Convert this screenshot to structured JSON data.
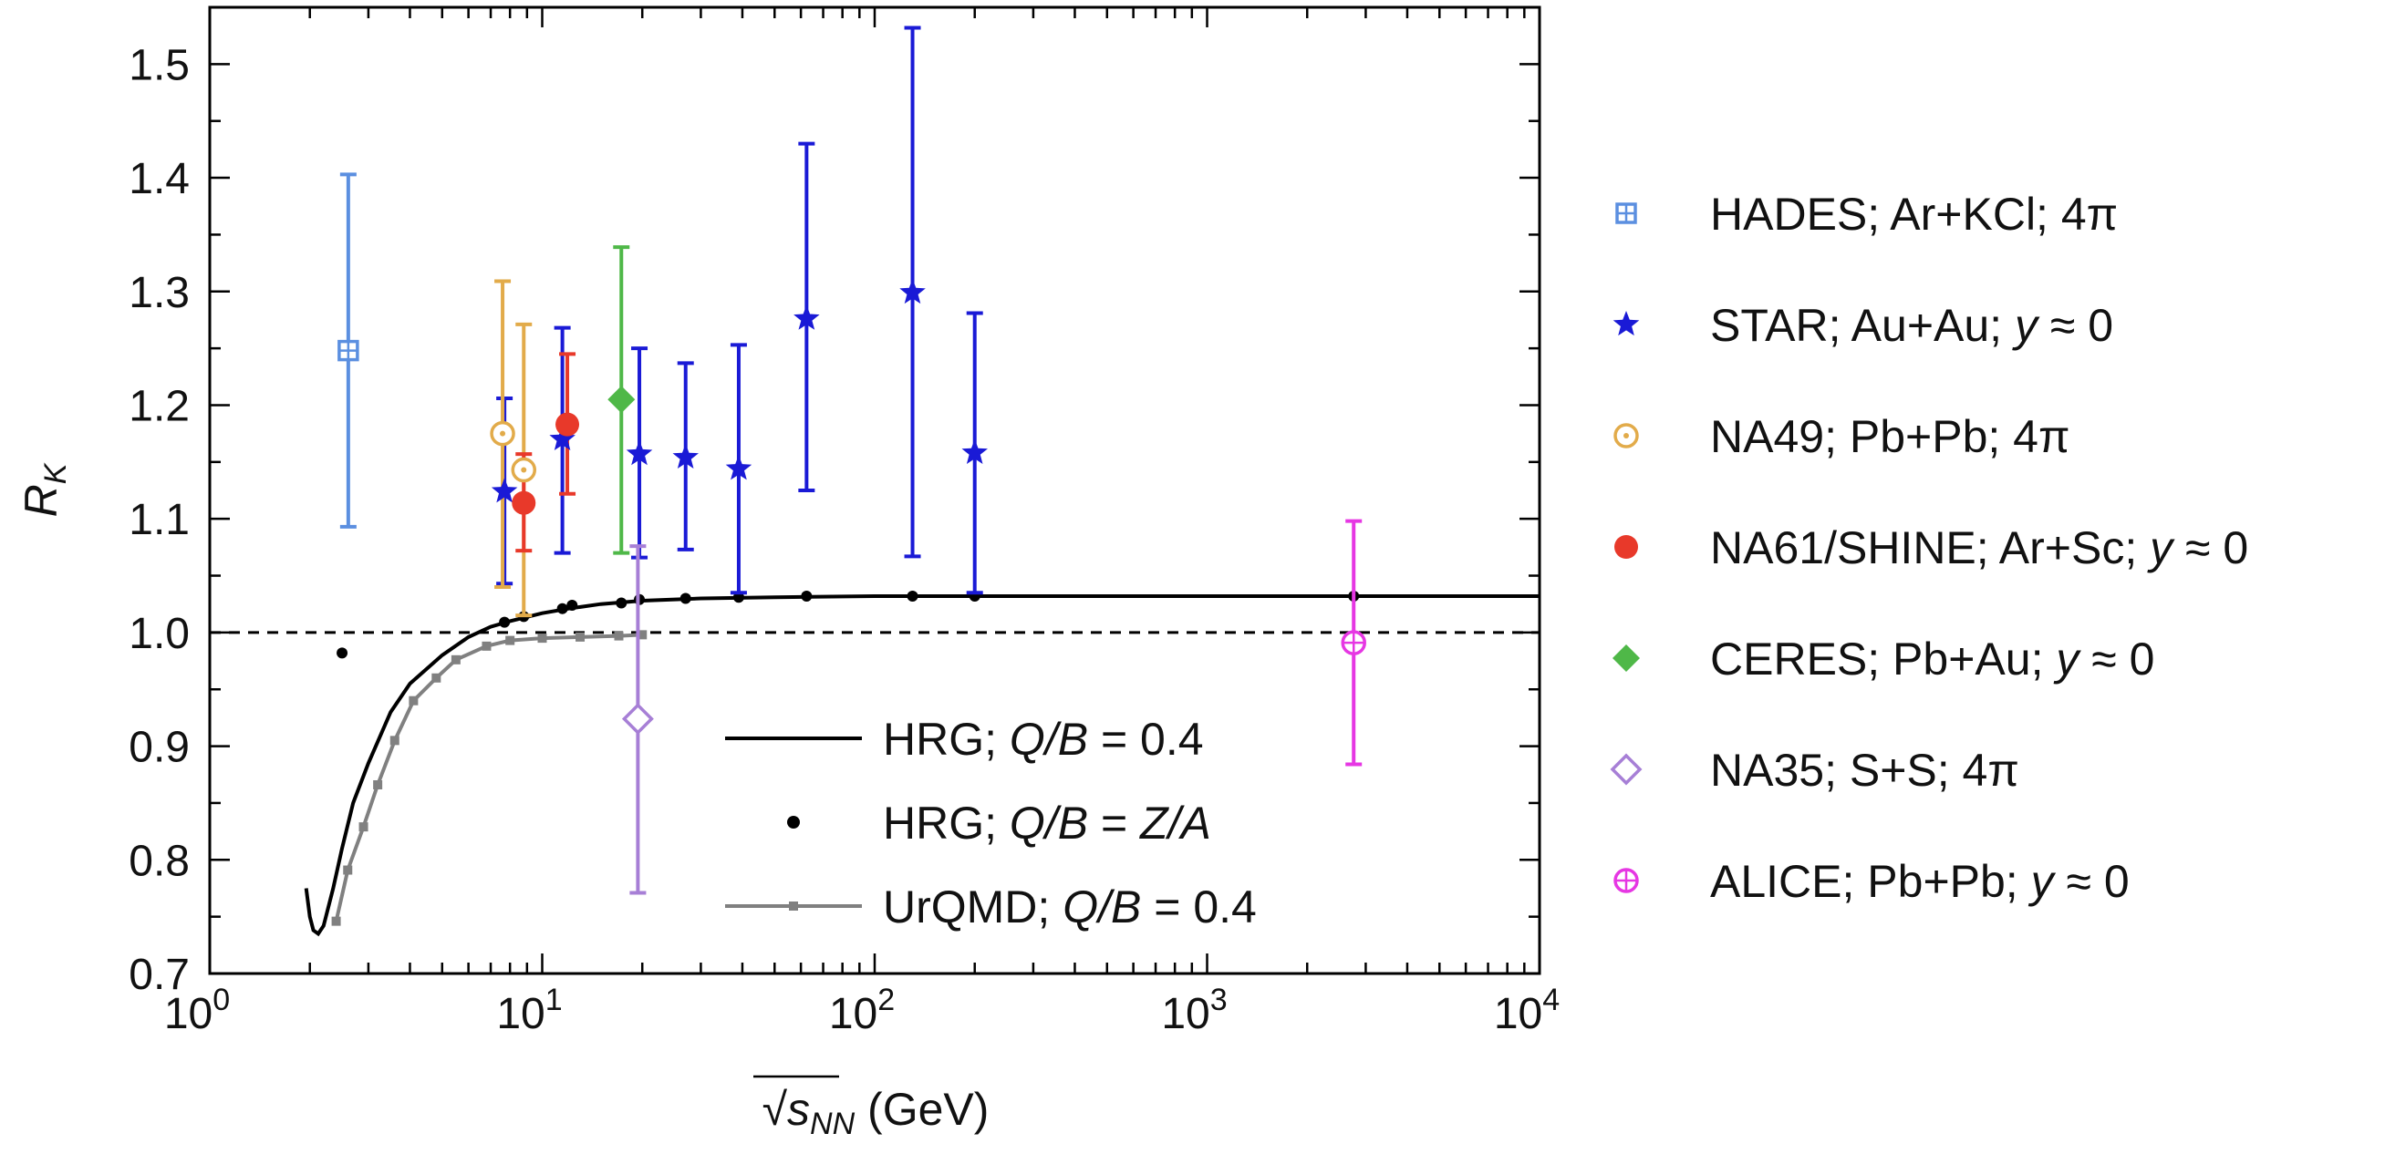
{
  "chart_data": {
    "type": "scatter",
    "xscale": "log",
    "xlim": [
      1,
      10000
    ],
    "ylim": [
      0.7,
      1.55
    ],
    "xlabel": {
      "sqrt": "√",
      "sym": "s",
      "sub": "NN",
      "unit": " (GeV)"
    },
    "ylabel": {
      "sym": "R",
      "sub": "K"
    },
    "x_ticks": [
      {
        "value": 1,
        "base": "10",
        "exp": "0"
      },
      {
        "value": 10,
        "base": "10",
        "exp": "1"
      },
      {
        "value": 100,
        "base": "10",
        "exp": "2"
      },
      {
        "value": 1000,
        "base": "10",
        "exp": "3"
      },
      {
        "value": 10000,
        "base": "10",
        "exp": "4"
      }
    ],
    "y_ticks": [
      {
        "value": 0.7,
        "label": "0.7"
      },
      {
        "value": 0.8,
        "label": "0.8"
      },
      {
        "value": 0.9,
        "label": "0.9"
      },
      {
        "value": 1.0,
        "label": "1.0"
      },
      {
        "value": 1.1,
        "label": "1.1"
      },
      {
        "value": 1.2,
        "label": "1.2"
      },
      {
        "value": 1.3,
        "label": "1.3"
      },
      {
        "value": 1.4,
        "label": "1.4"
      },
      {
        "value": 1.5,
        "label": "1.5"
      }
    ],
    "reference_line": {
      "y": 1.0,
      "style": "dashed"
    },
    "series": [
      {
        "name": "HADES; Ar+KCl; 4π",
        "id": "hades",
        "color": "#5b8fe0",
        "marker": "square-plus",
        "legend": [
          {
            "t": "HADES; Ar+KCl; 4π",
            "i": false
          }
        ],
        "points": [
          {
            "x": 2.61,
            "y": 1.248,
            "lo": 1.093,
            "hi": 1.403
          }
        ]
      },
      {
        "name": "STAR; Au+Au; y ≈ 0",
        "id": "star",
        "color": "#1a1ad6",
        "marker": "star",
        "legend": [
          {
            "t": "STAR; Au+Au; ",
            "i": false
          },
          {
            "t": "y",
            "i": true
          },
          {
            "t": " ≈ 0",
            "i": false
          }
        ],
        "points": [
          {
            "x": 7.7,
            "y": 1.124,
            "lo": 1.043,
            "hi": 1.206
          },
          {
            "x": 11.5,
            "y": 1.17,
            "lo": 1.07,
            "hi": 1.268
          },
          {
            "x": 19.6,
            "y": 1.157,
            "lo": 1.066,
            "hi": 1.25
          },
          {
            "x": 27,
            "y": 1.154,
            "lo": 1.073,
            "hi": 1.237
          },
          {
            "x": 39,
            "y": 1.144,
            "lo": 1.035,
            "hi": 1.253
          },
          {
            "x": 62.4,
            "y": 1.276,
            "lo": 1.125,
            "hi": 1.43
          },
          {
            "x": 130,
            "y": 1.299,
            "lo": 1.067,
            "hi": 1.532
          },
          {
            "x": 200,
            "y": 1.158,
            "lo": 1.035,
            "hi": 1.281
          }
        ]
      },
      {
        "name": "NA49; Pb+Pb; 4π",
        "id": "na49",
        "color": "#e2ab4a",
        "marker": "circle-dot",
        "legend": [
          {
            "t": "NA49; Pb+Pb; 4π",
            "i": false
          }
        ],
        "points": [
          {
            "x": 7.6,
            "y": 1.175,
            "lo": 1.04,
            "hi": 1.309
          },
          {
            "x": 8.8,
            "y": 1.143,
            "lo": 1.015,
            "hi": 1.271
          }
        ]
      },
      {
        "name": "NA61/SHINE; Ar+Sc; y ≈ 0",
        "id": "na61",
        "color": "#e8392a",
        "marker": "circle",
        "legend": [
          {
            "t": "NA61/SHINE; Ar+Sc; ",
            "i": false
          },
          {
            "t": "y",
            "i": true
          },
          {
            "t": " ≈ 0",
            "i": false
          }
        ],
        "points": [
          {
            "x": 8.8,
            "y": 1.114,
            "lo": 1.072,
            "hi": 1.157
          },
          {
            "x": 11.9,
            "y": 1.183,
            "lo": 1.122,
            "hi": 1.245
          }
        ]
      },
      {
        "name": "CERES; Pb+Au; y ≈ 0",
        "id": "ceres",
        "color": "#4fb848",
        "marker": "diamond",
        "legend": [
          {
            "t": "CERES; Pb+Au; ",
            "i": false
          },
          {
            "t": "y",
            "i": true
          },
          {
            "t": " ≈ 0",
            "i": false
          }
        ],
        "points": [
          {
            "x": 17.3,
            "y": 1.205,
            "lo": 1.07,
            "hi": 1.339
          }
        ]
      },
      {
        "name": "NA35; S+S; 4π",
        "id": "na35",
        "color": "#a77fd6",
        "marker": "diamond-open",
        "legend": [
          {
            "t": "NA35; S+S; 4π",
            "i": false
          }
        ],
        "points": [
          {
            "x": 19.4,
            "y": 0.924,
            "lo": 0.771,
            "hi": 1.076
          }
        ]
      },
      {
        "name": "ALICE; Pb+Pb; y ≈ 0",
        "id": "alice",
        "color": "#e637e3",
        "marker": "circle-plus",
        "legend": [
          {
            "t": "ALICE; Pb+Pb; ",
            "i": false
          },
          {
            "t": "y",
            "i": true
          },
          {
            "t": " ≈ 0",
            "i": false
          }
        ],
        "points": [
          {
            "x": 2760,
            "y": 0.991,
            "lo": 0.884,
            "hi": 1.098
          }
        ]
      }
    ],
    "model_curves": [
      {
        "name": "HRG; Q/B = 0.4",
        "id": "hrg-line",
        "color": "#000000",
        "style": "line",
        "legend": [
          {
            "t": "HRG; ",
            "i": false
          },
          {
            "t": "Q/B",
            "i": true
          },
          {
            "t": " = 0.4",
            "i": false
          }
        ],
        "points": [
          [
            1.95,
            0.775
          ],
          [
            2.0,
            0.75
          ],
          [
            2.05,
            0.738
          ],
          [
            2.12,
            0.735
          ],
          [
            2.2,
            0.742
          ],
          [
            2.35,
            0.775
          ],
          [
            2.5,
            0.81
          ],
          [
            2.7,
            0.85
          ],
          [
            3.0,
            0.885
          ],
          [
            3.5,
            0.93
          ],
          [
            4.0,
            0.955
          ],
          [
            5.0,
            0.98
          ],
          [
            6.0,
            0.996
          ],
          [
            7.0,
            1.005
          ],
          [
            8.0,
            1.01
          ],
          [
            10,
            1.017
          ],
          [
            12,
            1.021
          ],
          [
            15,
            1.025
          ],
          [
            20,
            1.028
          ],
          [
            30,
            1.03
          ],
          [
            50,
            1.031
          ],
          [
            100,
            1.032
          ],
          [
            300,
            1.032
          ],
          [
            1000,
            1.032
          ],
          [
            10000,
            1.032
          ]
        ]
      },
      {
        "name": "HRG; Q/B = Z/A",
        "id": "hrg-dots",
        "color": "#000000",
        "style": "dots",
        "legend": [
          {
            "t": "HRG; ",
            "i": false
          },
          {
            "t": "Q/B",
            "i": true
          },
          {
            "t": " = ",
            "i": false
          },
          {
            "t": "Z/A",
            "i": true
          }
        ],
        "points": [
          [
            2.5,
            0.982
          ],
          [
            7.7,
            1.009
          ],
          [
            8.8,
            1.014
          ],
          [
            11.5,
            1.021
          ],
          [
            12.3,
            1.024
          ],
          [
            17.3,
            1.026
          ],
          [
            19.6,
            1.029
          ],
          [
            27,
            1.03
          ],
          [
            39,
            1.031
          ],
          [
            62.4,
            1.032
          ],
          [
            130,
            1.032
          ],
          [
            200,
            1.032
          ],
          [
            2760,
            1.032
          ]
        ]
      },
      {
        "name": "UrQMD; Q/B = 0.4",
        "id": "urqmd",
        "color": "#808080",
        "style": "line-squares",
        "legend": [
          {
            "t": "UrQMD; ",
            "i": false
          },
          {
            "t": "Q/B",
            "i": true
          },
          {
            "t": " = 0.4",
            "i": false
          }
        ],
        "points": [
          [
            2.4,
            0.746
          ],
          [
            2.6,
            0.791
          ],
          [
            2.9,
            0.829
          ],
          [
            3.2,
            0.866
          ],
          [
            3.6,
            0.905
          ],
          [
            4.1,
            0.94
          ],
          [
            4.8,
            0.96
          ],
          [
            5.5,
            0.976
          ],
          [
            6.8,
            0.988
          ],
          [
            8.0,
            0.993
          ],
          [
            10.0,
            0.995
          ],
          [
            13.0,
            0.996
          ],
          [
            17.0,
            0.997
          ],
          [
            20.0,
            0.998
          ]
        ]
      }
    ]
  }
}
